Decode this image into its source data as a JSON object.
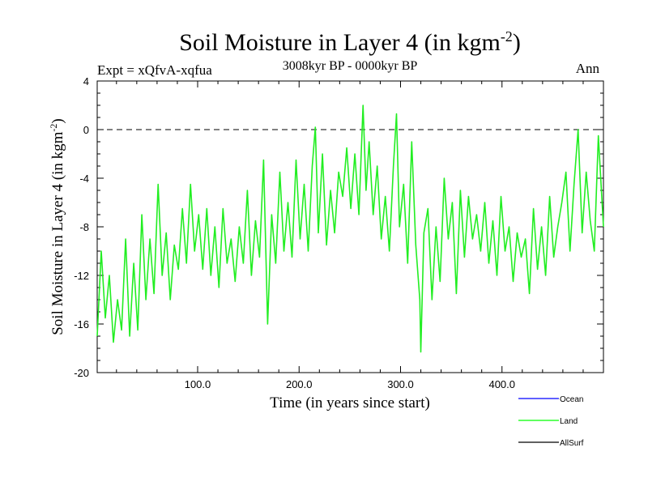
{
  "chart_data": {
    "type": "line",
    "title_main": "Soil Moisture in Layer 4 (in kgm",
    "title_sup": "-2",
    "title_close": ")",
    "expt_label": "Expt = xQfvA-xqfua",
    "period_label": "3008kyr BP - 0000kyr BP",
    "season_label": "Ann",
    "xlabel": "Time (in years since start)",
    "ylabel_main": "Soil Moisture in Layer 4 (in kgm",
    "ylabel_sup": "-2",
    "ylabel_close": ")",
    "xlim": [
      1,
      500
    ],
    "ylim": [
      -20,
      4
    ],
    "x_ticks": [
      100,
      200,
      300,
      400
    ],
    "x_tick_labels": [
      "100.0",
      "200.0",
      "300.0",
      "400.0"
    ],
    "y_ticks": [
      4,
      0,
      -4,
      -8,
      -12,
      -16,
      -20
    ],
    "y_tick_labels": [
      "4",
      "0",
      "-4",
      "-8",
      "-12",
      "-16",
      "-20"
    ],
    "reference_line": 0,
    "legend": [
      {
        "name": "Ocean",
        "color": "#0000ff"
      },
      {
        "name": "Land",
        "color": "#00ff00"
      },
      {
        "name": "AllSurf",
        "color": "#000000"
      }
    ],
    "series": [
      {
        "name": "Land",
        "color": "#22ee22",
        "points": [
          [
            1,
            -17.0
          ],
          [
            5,
            -10.0
          ],
          [
            9,
            -15.5
          ],
          [
            13,
            -12.0
          ],
          [
            17,
            -17.5
          ],
          [
            21,
            -14.0
          ],
          [
            25,
            -16.5
          ],
          [
            29,
            -9.0
          ],
          [
            33,
            -17.0
          ],
          [
            37,
            -11.0
          ],
          [
            41,
            -16.5
          ],
          [
            45,
            -7.0
          ],
          [
            49,
            -14.0
          ],
          [
            53,
            -9.0
          ],
          [
            57,
            -13.5
          ],
          [
            61,
            -4.5
          ],
          [
            65,
            -12.0
          ],
          [
            69,
            -8.5
          ],
          [
            73,
            -14.0
          ],
          [
            77,
            -9.5
          ],
          [
            81,
            -11.5
          ],
          [
            85,
            -6.5
          ],
          [
            89,
            -11.0
          ],
          [
            93,
            -4.5
          ],
          [
            97,
            -10.0
          ],
          [
            101,
            -7.0
          ],
          [
            105,
            -11.5
          ],
          [
            109,
            -6.5
          ],
          [
            113,
            -12.0
          ],
          [
            117,
            -8.0
          ],
          [
            121,
            -13.0
          ],
          [
            125,
            -6.5
          ],
          [
            129,
            -11.0
          ],
          [
            133,
            -9.0
          ],
          [
            137,
            -12.5
          ],
          [
            141,
            -8.0
          ],
          [
            145,
            -11.0
          ],
          [
            149,
            -5.0
          ],
          [
            153,
            -12.0
          ],
          [
            157,
            -7.5
          ],
          [
            161,
            -10.5
          ],
          [
            165,
            -2.5
          ],
          [
            169,
            -16.0
          ],
          [
            173,
            -7.0
          ],
          [
            177,
            -11.0
          ],
          [
            181,
            -3.5
          ],
          [
            185,
            -10.0
          ],
          [
            189,
            -6.0
          ],
          [
            193,
            -10.5
          ],
          [
            197,
            -2.5
          ],
          [
            201,
            -9.0
          ],
          [
            205,
            -4.5
          ],
          [
            209,
            -10.0
          ],
          [
            213,
            -3.0
          ],
          [
            216,
            0.2
          ],
          [
            219,
            -8.5
          ],
          [
            223,
            -2.0
          ],
          [
            227,
            -9.5
          ],
          [
            231,
            -5.0
          ],
          [
            235,
            -8.5
          ],
          [
            239,
            -3.5
          ],
          [
            243,
            -5.5
          ],
          [
            247,
            -1.5
          ],
          [
            251,
            -6.5
          ],
          [
            255,
            -2.0
          ],
          [
            259,
            -7.0
          ],
          [
            263,
            2.0
          ],
          [
            266,
            -5.0
          ],
          [
            269,
            -1.0
          ],
          [
            273,
            -7.0
          ],
          [
            277,
            -3.0
          ],
          [
            281,
            -9.0
          ],
          [
            285,
            -5.5
          ],
          [
            289,
            -10.0
          ],
          [
            293,
            -3.0
          ],
          [
            296,
            1.3
          ],
          [
            299,
            -8.0
          ],
          [
            303,
            -4.5
          ],
          [
            307,
            -11.0
          ],
          [
            311,
            -1.0
          ],
          [
            315,
            -9.5
          ],
          [
            319,
            -14.0
          ],
          [
            320,
            -18.3
          ],
          [
            323,
            -8.5
          ],
          [
            327,
            -6.5
          ],
          [
            331,
            -14.0
          ],
          [
            335,
            -8.0
          ],
          [
            339,
            -12.5
          ],
          [
            343,
            -4.0
          ],
          [
            347,
            -9.0
          ],
          [
            351,
            -6.0
          ],
          [
            355,
            -13.5
          ],
          [
            359,
            -5.0
          ],
          [
            363,
            -10.5
          ],
          [
            367,
            -5.5
          ],
          [
            371,
            -9.0
          ],
          [
            375,
            -7.0
          ],
          [
            379,
            -10.0
          ],
          [
            383,
            -6.0
          ],
          [
            387,
            -11.0
          ],
          [
            391,
            -7.5
          ],
          [
            395,
            -12.0
          ],
          [
            399,
            -5.5
          ],
          [
            403,
            -10.0
          ],
          [
            407,
            -8.0
          ],
          [
            411,
            -12.5
          ],
          [
            415,
            -8.5
          ],
          [
            419,
            -10.5
          ],
          [
            423,
            -9.0
          ],
          [
            427,
            -13.5
          ],
          [
            431,
            -6.5
          ],
          [
            435,
            -11.5
          ],
          [
            439,
            -8.0
          ],
          [
            443,
            -12.0
          ],
          [
            447,
            -5.5
          ],
          [
            451,
            -10.5
          ],
          [
            455,
            -8.0
          ],
          [
            459,
            -6.0
          ],
          [
            463,
            -3.5
          ],
          [
            467,
            -10.0
          ],
          [
            471,
            -4.5
          ],
          [
            475,
            0.0
          ],
          [
            479,
            -8.5
          ],
          [
            483,
            -3.5
          ],
          [
            487,
            -7.5
          ],
          [
            491,
            -10.0
          ],
          [
            495,
            -0.5
          ],
          [
            500,
            -8.0
          ]
        ]
      }
    ]
  }
}
